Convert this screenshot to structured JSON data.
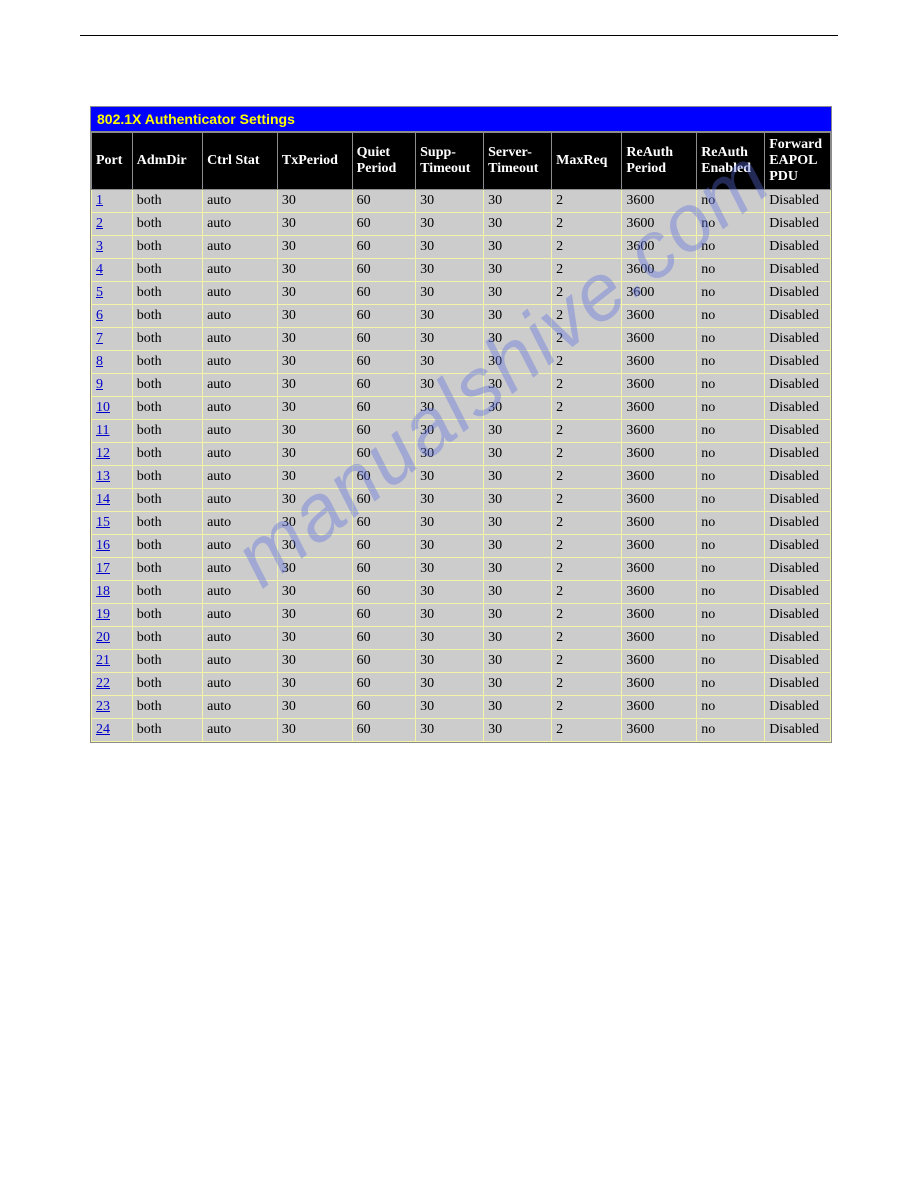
{
  "title": "802.1X Authenticator Settings",
  "watermark": "manualshive.com",
  "colors": {
    "title_bg": "#0000ff",
    "title_fg": "#ffff00",
    "header_bg": "#000000",
    "header_fg": "#ffffff",
    "cell_bg": "#cccccc",
    "cell_border": "#f5f5a7",
    "link": "#0000cc",
    "watermark": "#5a6ee0"
  },
  "columns": [
    {
      "key": "port",
      "label": "Port"
    },
    {
      "key": "admdir",
      "label": "AdmDir"
    },
    {
      "key": "ctrlstat",
      "label": "Ctrl Stat"
    },
    {
      "key": "txperiod",
      "label": "TxPeriod"
    },
    {
      "key": "quiet",
      "label": "Quiet Period"
    },
    {
      "key": "supp",
      "label": "Supp-Timeout"
    },
    {
      "key": "server",
      "label": "Server-Timeout"
    },
    {
      "key": "maxreq",
      "label": "MaxReq"
    },
    {
      "key": "reauthp",
      "label": "ReAuth Period"
    },
    {
      "key": "reauthe",
      "label": "ReAuth Enabled"
    },
    {
      "key": "fwd",
      "label": "Forward EAPOL PDU"
    }
  ],
  "rows": [
    {
      "port": "1",
      "admdir": "both",
      "ctrlstat": "auto",
      "txperiod": "30",
      "quiet": "60",
      "supp": "30",
      "server": "30",
      "maxreq": "2",
      "reauthp": "3600",
      "reauthe": "no",
      "fwd": "Disabled"
    },
    {
      "port": "2",
      "admdir": "both",
      "ctrlstat": "auto",
      "txperiod": "30",
      "quiet": "60",
      "supp": "30",
      "server": "30",
      "maxreq": "2",
      "reauthp": "3600",
      "reauthe": "no",
      "fwd": "Disabled"
    },
    {
      "port": "3",
      "admdir": "both",
      "ctrlstat": "auto",
      "txperiod": "30",
      "quiet": "60",
      "supp": "30",
      "server": "30",
      "maxreq": "2",
      "reauthp": "3600",
      "reauthe": "no",
      "fwd": "Disabled"
    },
    {
      "port": "4",
      "admdir": "both",
      "ctrlstat": "auto",
      "txperiod": "30",
      "quiet": "60",
      "supp": "30",
      "server": "30",
      "maxreq": "2",
      "reauthp": "3600",
      "reauthe": "no",
      "fwd": "Disabled"
    },
    {
      "port": "5",
      "admdir": "both",
      "ctrlstat": "auto",
      "txperiod": "30",
      "quiet": "60",
      "supp": "30",
      "server": "30",
      "maxreq": "2",
      "reauthp": "3600",
      "reauthe": "no",
      "fwd": "Disabled"
    },
    {
      "port": "6",
      "admdir": "both",
      "ctrlstat": "auto",
      "txperiod": "30",
      "quiet": "60",
      "supp": "30",
      "server": "30",
      "maxreq": "2",
      "reauthp": "3600",
      "reauthe": "no",
      "fwd": "Disabled"
    },
    {
      "port": "7",
      "admdir": "both",
      "ctrlstat": "auto",
      "txperiod": "30",
      "quiet": "60",
      "supp": "30",
      "server": "30",
      "maxreq": "2",
      "reauthp": "3600",
      "reauthe": "no",
      "fwd": "Disabled"
    },
    {
      "port": "8",
      "admdir": "both",
      "ctrlstat": "auto",
      "txperiod": "30",
      "quiet": "60",
      "supp": "30",
      "server": "30",
      "maxreq": "2",
      "reauthp": "3600",
      "reauthe": "no",
      "fwd": "Disabled"
    },
    {
      "port": "9",
      "admdir": "both",
      "ctrlstat": "auto",
      "txperiod": "30",
      "quiet": "60",
      "supp": "30",
      "server": "30",
      "maxreq": "2",
      "reauthp": "3600",
      "reauthe": "no",
      "fwd": "Disabled"
    },
    {
      "port": "10",
      "admdir": "both",
      "ctrlstat": "auto",
      "txperiod": "30",
      "quiet": "60",
      "supp": "30",
      "server": "30",
      "maxreq": "2",
      "reauthp": "3600",
      "reauthe": "no",
      "fwd": "Disabled"
    },
    {
      "port": "11",
      "admdir": "both",
      "ctrlstat": "auto",
      "txperiod": "30",
      "quiet": "60",
      "supp": "30",
      "server": "30",
      "maxreq": "2",
      "reauthp": "3600",
      "reauthe": "no",
      "fwd": "Disabled"
    },
    {
      "port": "12",
      "admdir": "both",
      "ctrlstat": "auto",
      "txperiod": "30",
      "quiet": "60",
      "supp": "30",
      "server": "30",
      "maxreq": "2",
      "reauthp": "3600",
      "reauthe": "no",
      "fwd": "Disabled"
    },
    {
      "port": "13",
      "admdir": "both",
      "ctrlstat": "auto",
      "txperiod": "30",
      "quiet": "60",
      "supp": "30",
      "server": "30",
      "maxreq": "2",
      "reauthp": "3600",
      "reauthe": "no",
      "fwd": "Disabled"
    },
    {
      "port": "14",
      "admdir": "both",
      "ctrlstat": "auto",
      "txperiod": "30",
      "quiet": "60",
      "supp": "30",
      "server": "30",
      "maxreq": "2",
      "reauthp": "3600",
      "reauthe": "no",
      "fwd": "Disabled"
    },
    {
      "port": "15",
      "admdir": "both",
      "ctrlstat": "auto",
      "txperiod": "30",
      "quiet": "60",
      "supp": "30",
      "server": "30",
      "maxreq": "2",
      "reauthp": "3600",
      "reauthe": "no",
      "fwd": "Disabled"
    },
    {
      "port": "16",
      "admdir": "both",
      "ctrlstat": "auto",
      "txperiod": "30",
      "quiet": "60",
      "supp": "30",
      "server": "30",
      "maxreq": "2",
      "reauthp": "3600",
      "reauthe": "no",
      "fwd": "Disabled"
    },
    {
      "port": "17",
      "admdir": "both",
      "ctrlstat": "auto",
      "txperiod": "30",
      "quiet": "60",
      "supp": "30",
      "server": "30",
      "maxreq": "2",
      "reauthp": "3600",
      "reauthe": "no",
      "fwd": "Disabled"
    },
    {
      "port": "18",
      "admdir": "both",
      "ctrlstat": "auto",
      "txperiod": "30",
      "quiet": "60",
      "supp": "30",
      "server": "30",
      "maxreq": "2",
      "reauthp": "3600",
      "reauthe": "no",
      "fwd": "Disabled"
    },
    {
      "port": "19",
      "admdir": "both",
      "ctrlstat": "auto",
      "txperiod": "30",
      "quiet": "60",
      "supp": "30",
      "server": "30",
      "maxreq": "2",
      "reauthp": "3600",
      "reauthe": "no",
      "fwd": "Disabled"
    },
    {
      "port": "20",
      "admdir": "both",
      "ctrlstat": "auto",
      "txperiod": "30",
      "quiet": "60",
      "supp": "30",
      "server": "30",
      "maxreq": "2",
      "reauthp": "3600",
      "reauthe": "no",
      "fwd": "Disabled"
    },
    {
      "port": "21",
      "admdir": "both",
      "ctrlstat": "auto",
      "txperiod": "30",
      "quiet": "60",
      "supp": "30",
      "server": "30",
      "maxreq": "2",
      "reauthp": "3600",
      "reauthe": "no",
      "fwd": "Disabled"
    },
    {
      "port": "22",
      "admdir": "both",
      "ctrlstat": "auto",
      "txperiod": "30",
      "quiet": "60",
      "supp": "30",
      "server": "30",
      "maxreq": "2",
      "reauthp": "3600",
      "reauthe": "no",
      "fwd": "Disabled"
    },
    {
      "port": "23",
      "admdir": "both",
      "ctrlstat": "auto",
      "txperiod": "30",
      "quiet": "60",
      "supp": "30",
      "server": "30",
      "maxreq": "2",
      "reauthp": "3600",
      "reauthe": "no",
      "fwd": "Disabled"
    },
    {
      "port": "24",
      "admdir": "both",
      "ctrlstat": "auto",
      "txperiod": "30",
      "quiet": "60",
      "supp": "30",
      "server": "30",
      "maxreq": "2",
      "reauthp": "3600",
      "reauthe": "no",
      "fwd": "Disabled"
    }
  ]
}
